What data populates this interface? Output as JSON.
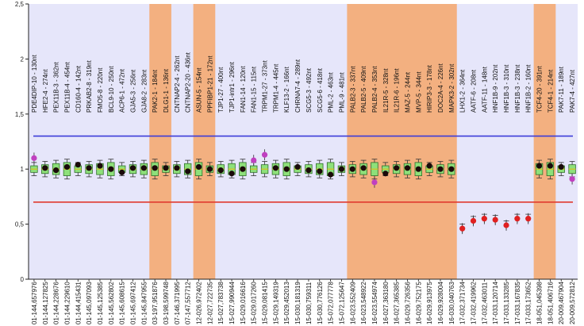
{
  "chart_data": {
    "type": "box",
    "title": "",
    "xlabel": "",
    "ylabel": "",
    "ylim": [
      0,
      2.5
    ],
    "y_ticks": [
      "0",
      "0,5",
      "1",
      "1,5",
      "2",
      "2,5"
    ],
    "grid": false,
    "upper_threshold": 1.3,
    "lower_threshold": 0.7,
    "colors": {
      "plot_background": "#e6e6fa",
      "highlight_band": "#f3b080",
      "upper_line": "#3c3cd8",
      "lower_line": "#e03a2f",
      "box_fill": "#8ee07a",
      "box_edge": "#2f6f2a",
      "point_normal": "#1a0a0a",
      "point_outlier": "#c040c0",
      "point_low": "#e02020"
    },
    "probes": [
      {
        "label": "PDE4DIP-10 - 130nt",
        "position": "01-144,657976",
        "value": 1.1,
        "status": "outlier"
      },
      {
        "label": "HFE2-4 - 274nt",
        "position": "01-144,127825",
        "value": 1.01,
        "status": "normal"
      },
      {
        "label": "PEX11B-3 - 362nt",
        "position": "01-144,228676",
        "value": 0.99,
        "status": "normal"
      },
      {
        "label": "PEX11B-4 - 454nt",
        "position": "01-144,229610",
        "value": 1.02,
        "status": "normal"
      },
      {
        "label": "CD160-4 - 142nt",
        "position": "01-144,415431",
        "value": 1.04,
        "status": "normal"
      },
      {
        "label": "PRKAB2-8 - 319nt",
        "position": "01-145,097093",
        "value": 1.01,
        "status": "normal"
      },
      {
        "label": "FMO5-8 - 220nt",
        "position": "01-145,125385",
        "value": 1.03,
        "status": "normal"
      },
      {
        "label": "BCL9-10 - 250nt",
        "position": "01-145,562802",
        "value": 1.0,
        "status": "normal"
      },
      {
        "label": "ACP6-1 - 472nt",
        "position": "01-145,608615",
        "value": 0.97,
        "status": "normal"
      },
      {
        "label": "GJA5-3 - 256nt",
        "position": "01-145,697412",
        "value": 1.01,
        "status": "normal"
      },
      {
        "label": "GJA8-2 - 283nt",
        "position": "01-145,847955",
        "value": 1.01,
        "status": "normal"
      },
      {
        "label": "PAK2-1 - 184nt",
        "position": "03-197,951876",
        "value": 1.01,
        "status": "normal"
      },
      {
        "label": "DLG1-1 - 136nt",
        "position": "03-198,599748",
        "value": 1.01,
        "status": "normal"
      },
      {
        "label": "CNTNAP2-4 - 262nt",
        "position": "07-146,371995",
        "value": 1.01,
        "status": "normal"
      },
      {
        "label": "CNTNAP2-20 - 436nt",
        "position": "07-147,557712",
        "value": 0.98,
        "status": "normal"
      },
      {
        "label": "ASUN-5 - 154nt",
        "position": "12-026,972402",
        "value": 1.02,
        "status": "normal"
      },
      {
        "label": "PPFIBP1-21 - 172nt",
        "position": "12-027,722735",
        "value": 1.0,
        "status": "normal"
      },
      {
        "label": "TJP1-27 - 400nt",
        "position": "15-027,783738",
        "value": 0.99,
        "status": "normal"
      },
      {
        "label": "TJP1-intr1 - 296nt",
        "position": "15-027,990944",
        "value": 0.96,
        "status": "normal"
      },
      {
        "label": "FAN1-14 - 120nt",
        "position": "15-029,016616",
        "value": 1.0,
        "status": "normal"
      },
      {
        "label": "FAN1-15 - 115nt",
        "position": "15-029,017260",
        "value": 1.08,
        "status": "outlier"
      },
      {
        "label": "TRPM1-27 - 373nt",
        "position": "15-029,081415",
        "value": 1.13,
        "status": "outlier"
      },
      {
        "label": "TRPM1-4 - 445nt",
        "position": "15-029,149319",
        "value": 1.01,
        "status": "normal"
      },
      {
        "label": "KLF13-2 - 166nt",
        "position": "15-029,452013",
        "value": 1.0,
        "status": "normal"
      },
      {
        "label": "CHRNA7-4 - 289nt",
        "position": "15-030,181319",
        "value": 1.02,
        "status": "normal"
      },
      {
        "label": "SCG5-3 - 492nt",
        "position": "15-030,759311",
        "value": 0.99,
        "status": "normal"
      },
      {
        "label": "SCG5-6 - 418nt",
        "position": "15-030,776126",
        "value": 0.98,
        "status": "normal"
      },
      {
        "label": "PML-2 - 463nt",
        "position": "15-072,077778",
        "value": 0.95,
        "status": "normal"
      },
      {
        "label": "PML-9 - 481nt",
        "position": "15-072,125647",
        "value": 1.0,
        "status": "normal"
      },
      {
        "label": "PALB2-3 - 337nt",
        "position": "16-023,552409",
        "value": 1.0,
        "status": "normal"
      },
      {
        "label": "PALB2-5 - 409nt",
        "position": "16-023,548922",
        "value": 1.01,
        "status": "normal"
      },
      {
        "label": "PALB2-4 - 353nt",
        "position": "16-023,554974",
        "value": 0.88,
        "status": "outlier"
      },
      {
        "label": "IL21R-5 - 328nt",
        "position": "16-027,363180",
        "value": 0.96,
        "status": "normal"
      },
      {
        "label": "IL21R-6 - 196nt",
        "position": "16-027,365385",
        "value": 1.01,
        "status": "normal"
      },
      {
        "label": "MAZ-5 - 244nt",
        "position": "16-029,726356",
        "value": 1.01,
        "status": "normal"
      },
      {
        "label": "MVP-5 - 344nt",
        "position": "16-029,752175",
        "value": 1.0,
        "status": "normal"
      },
      {
        "label": "HIRIP3-3 - 178nt",
        "position": "16-029,913975",
        "value": 1.03,
        "status": "normal"
      },
      {
        "label": "DOC2A-4 - 226nt",
        "position": "16-029,928004",
        "value": 1.0,
        "status": "normal"
      },
      {
        "label": "MAPK3-2 - 302nt",
        "position": "16-030,040763",
        "value": 1.0,
        "status": "normal"
      },
      {
        "label": "LHX1-2 - 364nt",
        "position": "17-032,371734",
        "value": 0.46,
        "status": "low"
      },
      {
        "label": "AATF-6 - 208nt",
        "position": "17-032,419962",
        "value": 0.53,
        "status": "low"
      },
      {
        "label": "AATF-11 - 148nt",
        "position": "17-032,463011",
        "value": 0.55,
        "status": "low"
      },
      {
        "label": "HNF1B-9 - 202nt",
        "position": "17-033,120714",
        "value": 0.54,
        "status": "low"
      },
      {
        "label": "HNF1B-3 - 310nt",
        "position": "17-033,133285",
        "value": 0.49,
        "status": "low"
      },
      {
        "label": "HNF1B-3 - 238nt",
        "position": "17-033,167835",
        "value": 0.55,
        "status": "low"
      },
      {
        "label": "HNF1B-2 - 160nt",
        "position": "17-033,173652",
        "value": 0.55,
        "status": "low"
      },
      {
        "label": "TCF4-20 - 391nt",
        "position": "18-051,045398",
        "value": 1.03,
        "status": "normal"
      },
      {
        "label": "TCF4-1 - 214nt",
        "position": "18-051,406716",
        "value": 1.03,
        "status": "normal"
      },
      {
        "label": "PAK7-11 - 189nt",
        "position": "20-009,467904",
        "value": 1.02,
        "status": "normal"
      },
      {
        "label": "PAK7-4 - 427nt",
        "position": "20-009,572812",
        "value": 0.91,
        "status": "outlier"
      }
    ],
    "highlighted_groups": [
      {
        "from": "PAK2-1 - 184nt",
        "to": "DLG1-1 - 136nt"
      },
      {
        "from": "ASUN-5 - 154nt",
        "to": "PPFIBP1-21 - 172nt"
      },
      {
        "from": "PALB2-3 - 337nt",
        "to": "MAPK3-2 - 302nt"
      },
      {
        "from": "TCF4-20 - 391nt",
        "to": "TCF4-1 - 214nt"
      }
    ]
  }
}
